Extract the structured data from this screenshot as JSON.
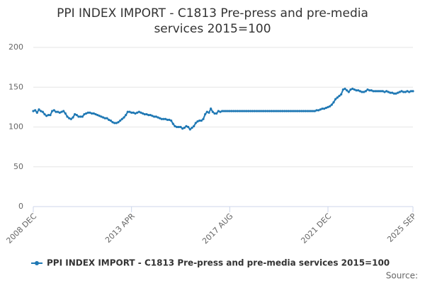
{
  "chart_data": {
    "type": "line",
    "title": "PPI INDEX IMPORT - C1813 Pre-press and pre-media services 2015=100",
    "source": "Source:",
    "categories": [
      "2008 DEC",
      null,
      null,
      null,
      null,
      null,
      null,
      null,
      null,
      null,
      null,
      null,
      null,
      null,
      null,
      null,
      null,
      null,
      null,
      null,
      null,
      null,
      null,
      null,
      null,
      null,
      null,
      null,
      null,
      null,
      null,
      null,
      null,
      null,
      null,
      null,
      null,
      null,
      null,
      null,
      null,
      null,
      null,
      null,
      null,
      null,
      null,
      null,
      null,
      null,
      null,
      null,
      "2013 APR",
      null,
      null,
      null,
      null,
      null,
      null,
      null,
      null,
      null,
      null,
      null,
      null,
      null,
      null,
      null,
      null,
      null,
      null,
      null,
      null,
      null,
      null,
      null,
      null,
      null,
      null,
      null,
      null,
      null,
      null,
      null,
      null,
      null,
      null,
      null,
      null,
      null,
      null,
      null,
      null,
      null,
      null,
      null,
      null,
      null,
      null,
      null,
      null,
      null,
      null,
      null,
      "2017 AUG",
      null,
      null,
      null,
      null,
      null,
      null,
      null,
      null,
      null,
      null,
      null,
      null,
      null,
      null,
      null,
      null,
      null,
      null,
      null,
      null,
      null,
      null,
      null,
      null,
      null,
      null,
      null,
      null,
      null,
      null,
      null,
      null,
      null,
      null,
      null,
      null,
      null,
      null,
      null,
      null,
      null,
      null,
      null,
      null,
      null,
      null,
      null,
      null,
      null,
      null,
      null,
      "2021 DEC",
      null,
      null,
      null,
      null,
      null,
      null,
      null,
      null,
      null,
      null,
      null,
      null,
      null,
      null,
      null,
      null,
      null,
      null,
      null,
      null,
      null,
      null,
      null,
      null,
      null,
      null,
      null,
      null,
      null,
      null,
      null,
      null,
      null,
      null,
      null,
      null,
      null,
      null,
      null,
      null,
      null,
      null,
      null,
      null,
      "2025 SEP"
    ],
    "series": [
      {
        "name": "PPI INDEX IMPORT - C1813 Pre-press and pre-media services 2015=100",
        "color": "#1f78b4",
        "values": [
          120,
          121,
          118,
          122,
          120,
          119,
          116,
          114,
          115,
          115,
          120,
          121,
          119,
          119,
          118,
          119,
          120,
          117,
          113,
          111,
          110,
          112,
          116,
          115,
          113,
          113,
          113,
          116,
          117,
          118,
          118,
          117,
          117,
          116,
          115,
          114,
          113,
          112,
          111,
          111,
          109,
          108,
          106,
          105,
          105,
          106,
          108,
          110,
          112,
          115,
          119,
          119,
          118,
          118,
          117,
          118,
          119,
          118,
          117,
          116,
          116,
          115,
          115,
          114,
          113,
          113,
          112,
          111,
          110,
          110,
          110,
          109,
          109,
          108,
          104,
          101,
          100,
          100,
          100,
          98,
          99,
          101,
          100,
          97,
          99,
          101,
          105,
          107,
          108,
          108,
          110,
          116,
          119,
          118,
          123,
          119,
          117,
          117,
          120,
          119,
          120,
          120,
          120,
          120,
          120,
          120,
          120,
          120,
          120,
          120,
          120,
          120,
          120,
          120,
          120,
          120,
          120,
          120,
          120,
          120,
          120,
          120,
          120,
          120,
          120,
          120,
          120,
          120,
          120,
          120,
          120,
          120,
          120,
          120,
          120,
          120,
          120,
          120,
          120,
          120,
          120,
          120,
          120,
          120,
          120,
          120,
          120,
          120,
          120,
          120,
          121,
          121,
          122,
          123,
          123,
          124,
          125,
          126,
          128,
          131,
          135,
          137,
          139,
          141,
          147,
          148,
          146,
          144,
          147,
          148,
          147,
          146,
          146,
          145,
          144,
          144,
          145,
          147,
          146,
          146,
          145,
          145,
          145,
          145,
          145,
          145,
          144,
          145,
          144,
          143,
          143,
          142,
          142,
          143,
          144,
          145,
          144,
          144,
          145,
          144,
          145,
          145
        ]
      }
    ],
    "ylim": [
      0,
      200
    ],
    "yticks": [
      0,
      50,
      100,
      150,
      200
    ],
    "grid": true
  }
}
